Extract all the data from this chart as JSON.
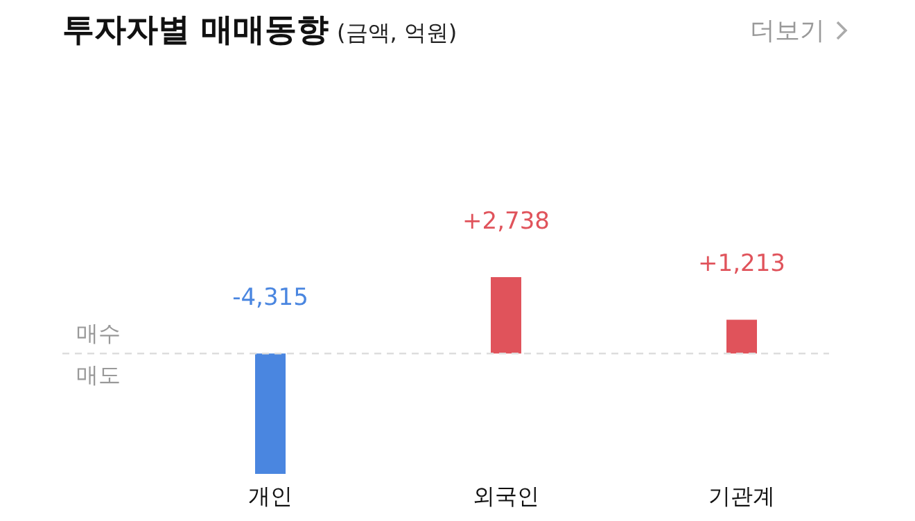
{
  "chart_data": {
    "type": "bar",
    "title": "투자자별 매매동향",
    "subtitle": "(금액, 억원)",
    "annotations": [
      "매수",
      "매도",
      "더보기"
    ],
    "categories": [
      "개인",
      "외국인",
      "기관계"
    ],
    "values": [
      -4315,
      2738,
      1213
    ],
    "colors": [
      "#4a86e0",
      "#e0535b",
      "#e0535b"
    ],
    "value_labels": [
      "-4,315",
      "+2,738",
      "+1,213"
    ],
    "tick_labels": "x",
    "ref_lines": [
      {
        "axis": "y",
        "value": 0,
        "color": "#dddddd",
        "line_style": "dashed"
      }
    ]
  }
}
